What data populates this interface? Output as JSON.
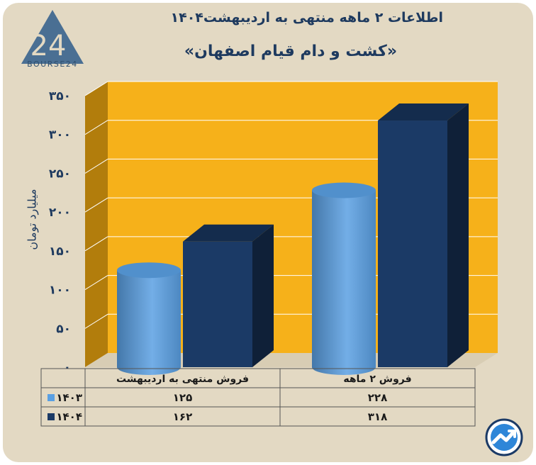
{
  "title": "اطلاعات ۲ ماهه منتهی به اردیبهشت۱۴۰۴",
  "subtitle": "«کشت و دام قیام اصفهان»",
  "brand": {
    "logo_text": "BOURSE24",
    "logo_mark": "24"
  },
  "colors": {
    "background": "#e3d9c3",
    "plot_back": "#f6b11a",
    "plot_side": "#b27d0c",
    "series_1403": "#5aa0e3",
    "series_1404": "#1b3a66",
    "text": "#1e3a5f"
  },
  "chart_data": {
    "type": "bar",
    "title": "اطلاعات ۲ ماهه منتهی به اردیبهشت۱۴۰۴",
    "subtitle": "«کشت و دام قیام اصفهان»",
    "categories": [
      "فروش منتهی به اردیبهشت",
      "فروش ۲ ماهه"
    ],
    "series": [
      {
        "name": "۱۴۰۳",
        "values": [
          125,
          228
        ],
        "labels": [
          "۱۲۵",
          "۲۲۸"
        ],
        "color": "#5aa0e3",
        "shape": "cylinder"
      },
      {
        "name": "۱۴۰۴",
        "values": [
          162,
          318
        ],
        "labels": [
          "۱۶۲",
          "۳۱۸"
        ],
        "color": "#1b3a66",
        "shape": "box"
      }
    ],
    "ylabel": "میلیارد تومان",
    "ylim": [
      0,
      350
    ],
    "yticks": [
      0,
      50,
      100,
      150,
      200,
      250,
      300,
      350
    ],
    "ytick_labels": [
      "۰",
      "۵۰",
      "۱۰۰",
      "۱۵۰",
      "۲۰۰",
      "۲۵۰",
      "۳۰۰",
      "۳۵۰"
    ],
    "grid": true,
    "legend": "data-table-left"
  }
}
